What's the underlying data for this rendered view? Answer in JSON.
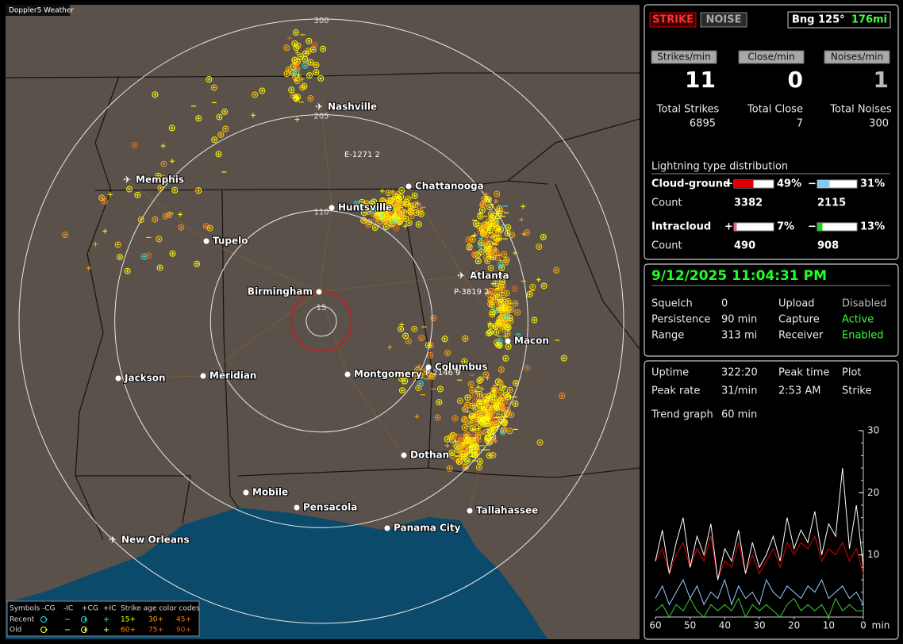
{
  "app_title": "Doppler5 Weather",
  "map": {
    "range_rings": [
      300,
      205,
      110,
      15
    ],
    "cities": [
      "Nashville",
      "Memphis",
      "Chattanooga",
      "Huntsville",
      "Tupelo",
      "Atlanta",
      "Birmingham",
      "Macon",
      "Columbus",
      "Montgomery",
      "Meridian",
      "Jackson",
      "Dothan",
      "Mobile",
      "Pensacola",
      "Tallahassee",
      "Panama City",
      "New Orleans"
    ],
    "strike_tags": [
      "E-1271 2",
      "P-3819 2",
      "P-2146 9"
    ],
    "legend": {
      "headers": [
        "Symbols",
        "-CG",
        "-IC",
        "+CG",
        "+IC",
        "Strike age color codes"
      ],
      "rows": [
        {
          "label": "Recent",
          "ages": [
            "15+",
            "30+",
            "45+"
          ],
          "colors": [
            "#ffff00",
            "#ffb000",
            "#ff8000"
          ],
          "symbol_color": "#20e0e0"
        },
        {
          "label": "Old",
          "ages": [
            "60+",
            "75+",
            "90+"
          ],
          "colors": [
            "#ff9000",
            "#f07020",
            "#e05010"
          ],
          "symbol_color": "#ffff40"
        }
      ]
    }
  },
  "panel1": {
    "modes": [
      "STRIKE",
      "NOISE"
    ],
    "bearing": "Bng 125°",
    "distance": "176mi",
    "rates": [
      {
        "label": "Strikes/min",
        "value": 11
      },
      {
        "label": "Close/min",
        "value": 0
      },
      {
        "label": "Noises/min",
        "value": 1
      }
    ],
    "totals": [
      {
        "label": "Total Strikes",
        "value": 6895
      },
      {
        "label": "Total Close",
        "value": 7
      },
      {
        "label": "Total Noises",
        "value": 300
      }
    ],
    "distribution": {
      "title": "Lightning type distribution",
      "count_label": "Count",
      "rows": [
        {
          "name": "Cloud-ground",
          "parts": [
            {
              "sign": "+",
              "value": 49,
              "label": "49%",
              "count": 3382,
              "color": "#e00000"
            },
            {
              "sign": "−",
              "value": 31,
              "label": "31%",
              "count": 2115,
              "color": "#8ac8f0"
            }
          ]
        },
        {
          "name": "Intracloud",
          "parts": [
            {
              "sign": "+",
              "value": 7,
              "label": "7%",
              "count": 490,
              "color": "#e060a0"
            },
            {
              "sign": "−",
              "value": 13,
              "label": "13%",
              "count": 908,
              "color": "#20d020"
            }
          ]
        }
      ]
    }
  },
  "panel2": {
    "datetime": "9/12/2025 11:04:31 PM",
    "settings": [
      [
        "Squelch",
        "0",
        "Upload",
        "Disabled"
      ],
      [
        "Persistence",
        "90 min",
        "Capture",
        "Active"
      ],
      [
        "Range",
        "313 mi",
        "Receiver",
        "Enabled"
      ]
    ]
  },
  "panel3": {
    "stats": [
      [
        "Uptime",
        "322:20",
        "Peak time",
        "Plot"
      ],
      [
        "Peak rate",
        "31/min",
        "2:53 AM",
        "Strike"
      ]
    ],
    "trend_label": "Trend graph",
    "trend_window": "60 min",
    "trend": {
      "xlim": [
        60,
        0
      ],
      "ylim": [
        0,
        30
      ],
      "xticks": [
        60,
        50,
        40,
        30,
        20,
        10,
        0
      ],
      "yticks": [
        10,
        20,
        30
      ],
      "x_unit": "min",
      "x": [
        60,
        58,
        56,
        54,
        52,
        50,
        48,
        46,
        44,
        42,
        40,
        38,
        36,
        34,
        32,
        30,
        28,
        26,
        24,
        22,
        20,
        18,
        16,
        14,
        12,
        10,
        8,
        6,
        4,
        2,
        0
      ],
      "series": [
        {
          "color": "#ffffff",
          "values": [
            9,
            14,
            7,
            12,
            16,
            8,
            13,
            10,
            15,
            6,
            11,
            9,
            14,
            7,
            12,
            8,
            10,
            13,
            9,
            16,
            11,
            14,
            12,
            17,
            10,
            15,
            13,
            24,
            11,
            18,
            8
          ]
        },
        {
          "color": "#e00000",
          "values": [
            9,
            11,
            7,
            10,
            12,
            8,
            11,
            9,
            13,
            6,
            9,
            8,
            12,
            7,
            10,
            7,
            9,
            11,
            8,
            12,
            10,
            12,
            11,
            13,
            9,
            11,
            10,
            12,
            9,
            11,
            7
          ]
        },
        {
          "color": "#99ccff",
          "values": [
            3,
            5,
            2,
            4,
            6,
            3,
            5,
            2,
            4,
            3,
            6,
            2,
            5,
            3,
            4,
            2,
            6,
            4,
            3,
            5,
            4,
            3,
            5,
            4,
            6,
            3,
            4,
            5,
            3,
            4,
            2
          ]
        },
        {
          "color": "#33cc33",
          "values": [
            1,
            2,
            0,
            2,
            1,
            3,
            1,
            0,
            2,
            1,
            2,
            1,
            3,
            0,
            2,
            1,
            2,
            1,
            0,
            2,
            3,
            1,
            2,
            1,
            2,
            0,
            3,
            1,
            2,
            1,
            1
          ]
        }
      ]
    }
  }
}
